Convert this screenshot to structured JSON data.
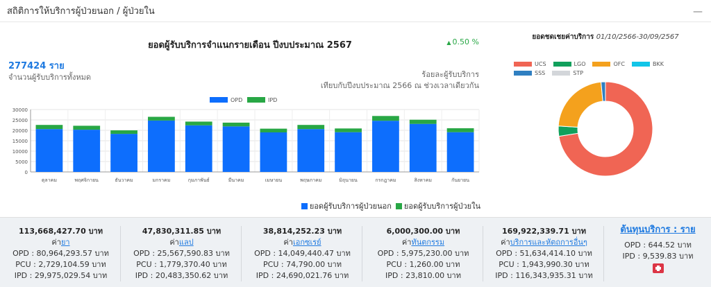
{
  "header": {
    "title": "สถิติการให้บริการผู้ป่วยนอก / ผู้ป่วยใน"
  },
  "summary": {
    "chart_title": "ยอดผู้รับบริการจำแนกรายเดือน ปีงบประมาณ 2567",
    "total_value": "277424 ราย",
    "total_label": "จำนวนผู้รับบริการทั้งหมด",
    "pct_value": "0.50 %",
    "pct_label": "ร้อยละผู้รับบริการ",
    "pct_compare": "เทียบกับปีงบประมาณ 2566 ณ ช่วงเวลาเดียวกัน"
  },
  "bottom_legend": {
    "opd": "ยอดผู้รับบริการผู้ป่วยนอก",
    "ipd": "ยอดผู้รับบริการผู้ป่วยใน"
  },
  "colors": {
    "opd": "#0d6efd",
    "ipd": "#28a745"
  },
  "chart_data": [
    {
      "type": "bar",
      "stacked": true,
      "categories": [
        "ตุลาคม",
        "พฤศจิกายน",
        "ธันวาคม",
        "มกราคม",
        "กุมภาพันธ์",
        "มีนาคม",
        "เมษายน",
        "พฤษภาคม",
        "มิถุนายน",
        "กรกฎาคม",
        "สิงหาคม",
        "กันยายน"
      ],
      "series": [
        {
          "name": "OPD",
          "color": "#0d6efd",
          "values": [
            20600,
            20300,
            18300,
            24700,
            22400,
            21900,
            19000,
            20600,
            19100,
            24600,
            23100,
            19100
          ]
        },
        {
          "name": "IPD",
          "color": "#28a745",
          "values": [
            2000,
            1900,
            1700,
            1800,
            1800,
            1800,
            1800,
            2000,
            1800,
            2300,
            2000,
            1900
          ]
        }
      ],
      "yticks": [
        0,
        5000,
        10000,
        15000,
        20000,
        25000,
        30000
      ],
      "ylim": [
        0,
        30000
      ],
      "legend": "top-center"
    },
    {
      "type": "pie",
      "donut": true,
      "title": "ยอดชดเชยค่าบริการ",
      "subtitle": "01/10/2566-30/09/2567",
      "labels": [
        "UCS",
        "LGO",
        "OFC",
        "BKK",
        "SSS",
        "STP"
      ],
      "colors": [
        "#f06554",
        "#11a05c",
        "#f4a11d",
        "#12c5e8",
        "#2f7fc1",
        "#d3d6da"
      ],
      "values": [
        72.5,
        3.5,
        22.5,
        0,
        1.5,
        0
      ]
    }
  ],
  "stats": [
    {
      "main": "113,668,427.70 บาท",
      "prefix": "ค่า",
      "link": "ยา",
      "lines": [
        "OPD : 80,964,293.57 บาท",
        "PCU : 2,729,104.59 บาท",
        "IPD : 29,975,029.54 บาท"
      ]
    },
    {
      "main": "47,830,311.85 บาท",
      "prefix": "ค่า",
      "link": "แลป",
      "lines": [
        "OPD : 25,567,590.83 บาท",
        "PCU : 1,779,370.40 บาท",
        "IPD : 20,483,350.62 บาท"
      ]
    },
    {
      "main": "38,814,252.23 บาท",
      "prefix": "ค่า",
      "link": "เอกซเรย์",
      "lines": [
        "OPD : 14,049,440.47 บาท",
        "PCU : 74,790.00 บาท",
        "IPD : 24,690,021.76 บาท"
      ]
    },
    {
      "main": "6,000,300.00 บาท",
      "prefix": "ค่า",
      "link": "ทันตกรรม",
      "lines": [
        "OPD : 5,975,230.00 บาท",
        "PCU : 1,260.00 บาท",
        "IPD : 23,810.00 บาท"
      ]
    },
    {
      "main": "169,922,339.71 บาท",
      "prefix": "ค่า",
      "link": "บริการและหัตถการอื่นๆ",
      "lines": [
        "OPD : 51,634,414.10 บาท",
        "PCU : 1,943,990.30 บาท",
        "IPD : 116,343,935.31 บาท"
      ]
    }
  ],
  "cost": {
    "title": "ต้นทุนบริการ : ราย",
    "opd": "OPD : 644.52 บาท",
    "ipd": "IPD : 9,539.83 บาท",
    "icon": "medkit-icon"
  }
}
